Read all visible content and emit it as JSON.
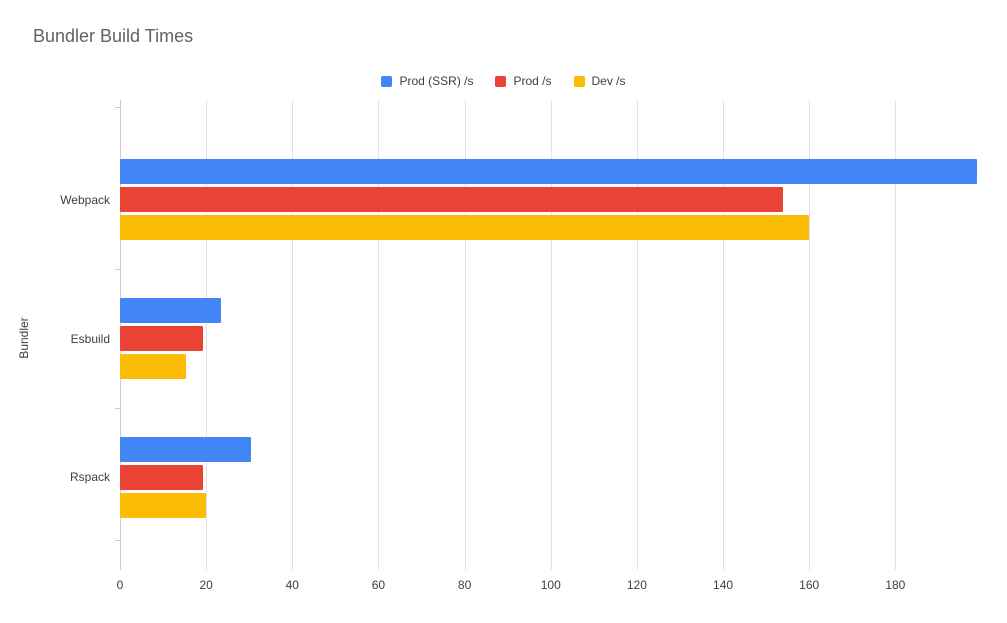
{
  "title": "Bundler Build Times",
  "axis": {
    "ylabel": "Bundler"
  },
  "chart_data": {
    "type": "bar",
    "orientation": "horizontal",
    "title": "Bundler Build Times",
    "xlabel": "",
    "ylabel": "Bundler",
    "categories": [
      "Webpack",
      "Esbuild",
      "Rspack"
    ],
    "series": [
      {
        "name": "Prod (SSR) /s",
        "color": "#4285F4",
        "values": [
          199,
          23.5,
          30.5
        ]
      },
      {
        "name": "Prod /s",
        "color": "#EA4335",
        "values": [
          154,
          19.3,
          19.3
        ]
      },
      {
        "name": "Dev /s",
        "color": "#FBBC04",
        "values": [
          160,
          15.3,
          20
        ]
      }
    ],
    "xlim": [
      0,
      203.6
    ],
    "xticks": [
      0,
      20,
      40,
      60,
      80,
      100,
      120,
      140,
      160,
      180
    ],
    "grid": true,
    "legend_position": "top",
    "background_color": "#ffffff",
    "gridline_color": "#e3e3e3"
  }
}
